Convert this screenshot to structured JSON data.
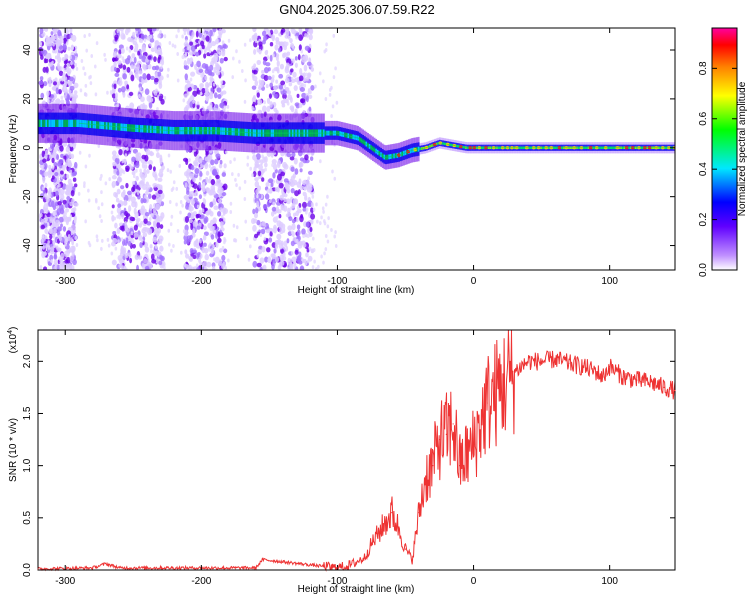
{
  "title": "GN04.2025.306.07.59.R22",
  "chart_data": [
    {
      "type": "heatmap",
      "xlabel": "Height of straight line (km)",
      "ylabel": "Frequency (Hz)",
      "xlim": [
        -320,
        148
      ],
      "ylim": [
        -50,
        49
      ],
      "xticks": [
        -300,
        -200,
        -100,
        0,
        100
      ],
      "yticks": [
        -40,
        -20,
        0,
        20,
        40
      ],
      "colorbar": {
        "label": "Normalized spectral amplitude",
        "range": [
          0,
          0.96
        ],
        "ticks": [
          "0.0",
          "0.2",
          "0.4",
          "0.6",
          "0.8"
        ],
        "colors": [
          "#ffffff",
          "#a060ff",
          "#0000ff",
          "#00e8ff",
          "#00ff00",
          "#ffff00",
          "#ff8000",
          "#ff0000",
          "#ff00a0"
        ]
      },
      "ridge": {
        "x": [
          -290,
          -270,
          -250,
          -220,
          -190,
          -160,
          -140,
          -120,
          -100,
          -85,
          -75,
          -65,
          -55,
          -45,
          -35,
          -25,
          -15,
          -5,
          0,
          50,
          100,
          148
        ],
        "freq": [
          10,
          9,
          8,
          7,
          7,
          6,
          6,
          6,
          6,
          4,
          0,
          -4,
          -3,
          -1,
          0,
          2,
          1,
          0,
          0,
          0,
          0,
          0
        ]
      }
    },
    {
      "type": "line",
      "xlabel": "Height of straight line (km)",
      "ylabel": "SNR (10 * v/v)",
      "yscale_label": "(x10",
      "yscale_exp": "4",
      "xlim": [
        -320,
        148
      ],
      "ylim": [
        0,
        2.3
      ],
      "xticks": [
        -300,
        -200,
        -100,
        0,
        100
      ],
      "yticks": [
        "0.0",
        "0.5",
        "1.0",
        "1.5",
        "2.0"
      ],
      "series": [
        {
          "name": "SNR",
          "color": "#ee3333",
          "x": [
            -320,
            -280,
            -270,
            -260,
            -160,
            -155,
            -100,
            -90,
            -80,
            -75,
            -70,
            -60,
            -55,
            -50,
            -45,
            -40,
            -35,
            -30,
            -25,
            -20,
            -15,
            -10,
            -5,
            0,
            10,
            20,
            30,
            40,
            50,
            60,
            70,
            80,
            90,
            95,
            100,
            110,
            120,
            130,
            140,
            148
          ],
          "y": [
            0.01,
            0.02,
            0.06,
            0.02,
            0.02,
            0.1,
            0.02,
            0.05,
            0.12,
            0.25,
            0.35,
            0.55,
            0.4,
            0.2,
            0.1,
            0.55,
            0.9,
            1.0,
            1.25,
            1.3,
            1.4,
            1.0,
            1.1,
            1.2,
            1.6,
            1.75,
            1.9,
            2.0,
            2.0,
            2.02,
            1.98,
            1.95,
            1.9,
            1.85,
            1.95,
            1.85,
            1.82,
            1.8,
            1.75,
            1.72
          ]
        }
      ]
    }
  ]
}
